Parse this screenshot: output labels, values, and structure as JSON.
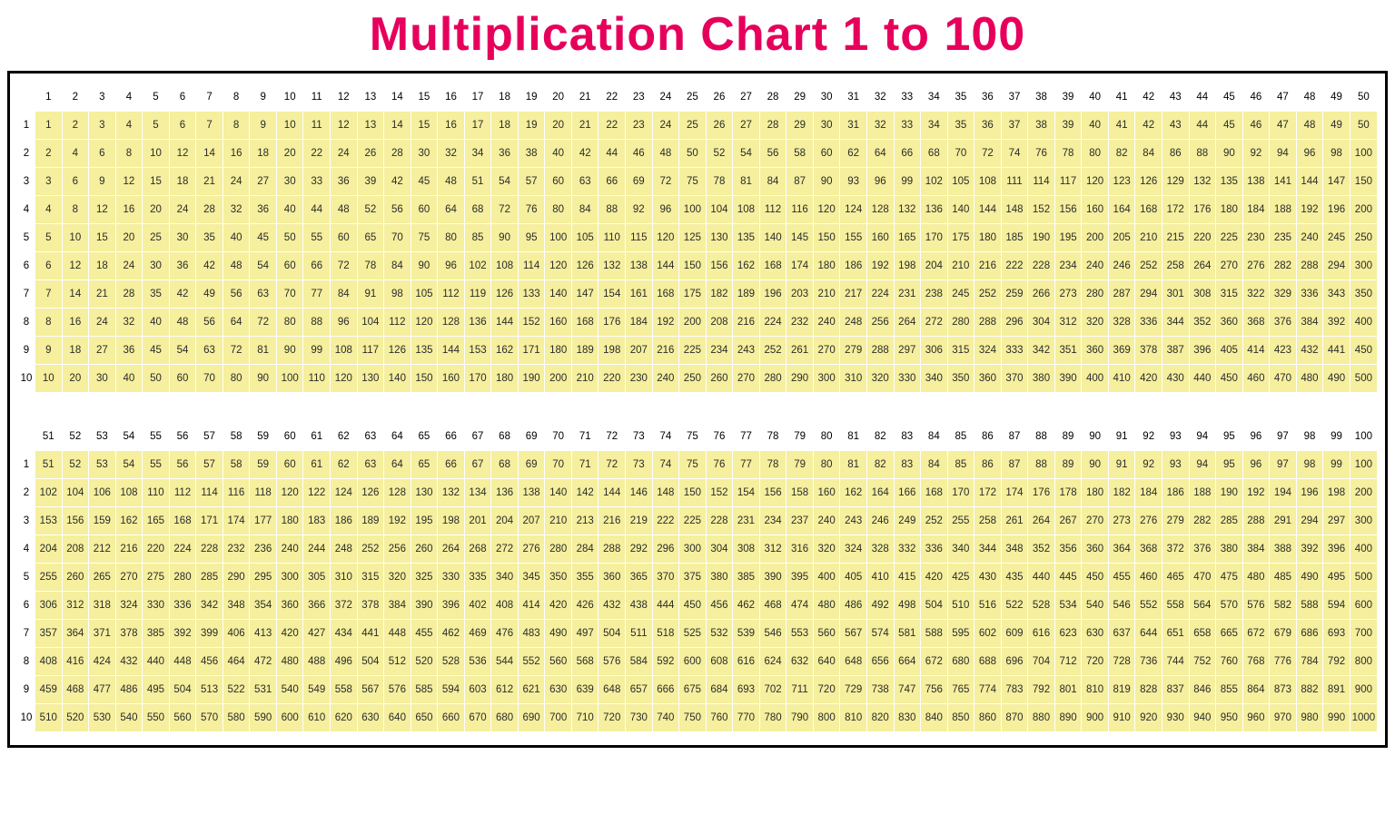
{
  "title": "Multiplication Chart 1 to 100",
  "title_color": "#e6005c",
  "title_fontsize": 52,
  "frame_border_color": "#000000",
  "background_color": "#ffffff",
  "cell_bg_color": "#f5ef9e",
  "cell_text_color": "#2b2b2b",
  "header_text_color": "#000000",
  "block1": {
    "col_start": 1,
    "col_end": 50,
    "row_start": 1,
    "row_end": 10
  },
  "block2": {
    "col_start": 51,
    "col_end": 100,
    "row_start": 1,
    "row_end": 10
  }
}
